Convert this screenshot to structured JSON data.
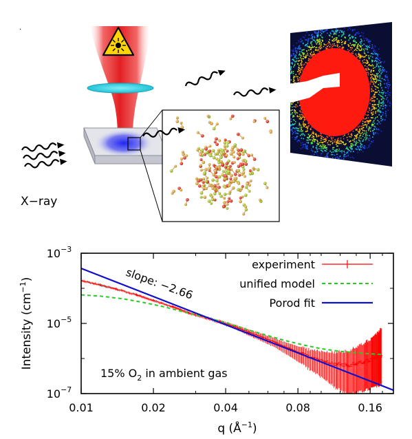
{
  "illustration": {
    "source_label": "X−ray",
    "colors": {
      "laser_beam": "#e8262b",
      "lens": "#35d0e0",
      "substrate": "#d9dce3",
      "xray_spot": "#2a2ff0",
      "warning_sign": "#ffd400",
      "particle_gold": "#d8a23a",
      "particle_red": "#e23a2a",
      "particle_green": "#a8c43a",
      "detector_background": "#0d1030",
      "scatter_core": "#ff1a10"
    },
    "icons": [
      "laser-warning-icon",
      "wavy-arrow-icon"
    ]
  },
  "chart_data": {
    "type": "line",
    "xscale": "log",
    "yscale": "log",
    "xlim": [
      0.01,
      0.2
    ],
    "ylim": [
      1e-07,
      0.001
    ],
    "xticks": [
      0.01,
      0.02,
      0.04,
      0.08,
      0.16
    ],
    "xtick_labels": [
      "0.01",
      "0.02",
      "0.04",
      "0.08",
      "0.16"
    ],
    "yticks": [
      1e-07,
      1e-05,
      0.001
    ],
    "ytick_labels": [
      {
        "base": "10",
        "exp": "−7"
      },
      {
        "base": "10",
        "exp": "−5"
      },
      {
        "base": "10",
        "exp": "−3"
      }
    ],
    "xlabel": {
      "text": "q (Å",
      "sup": "−1",
      "suffix": ")"
    },
    "ylabel": {
      "text": "Intensity (cm",
      "sup": "−1",
      "suffix": ")"
    },
    "grid": false,
    "legend_position": "top-right",
    "series": [
      {
        "name": "experiment",
        "style": "points-with-errorbars",
        "color": "#ff0000",
        "x": [
          0.01,
          0.012,
          0.014,
          0.017,
          0.02,
          0.024,
          0.028,
          0.033,
          0.038,
          0.044,
          0.05,
          0.057,
          0.065,
          0.074,
          0.083,
          0.093,
          0.104,
          0.116,
          0.128,
          0.14,
          0.152,
          0.163,
          0.172,
          0.178
        ],
        "y": [
          0.000165,
          0.000125,
          9.5e-05,
          6.5e-05,
          4.5e-05,
          3e-05,
          2e-05,
          1.45e-05,
          1.1e-05,
          8e-06,
          5.6e-06,
          4e-06,
          2.8e-06,
          1.9e-06,
          1.4e-06,
          1e-06,
          8e-07,
          7e-07,
          6.5e-07,
          7e-07,
          8e-07,
          1e-06,
          1.1e-06,
          1.2e-06
        ],
        "err_low": [
          0.08,
          0.08,
          0.08,
          0.08,
          0.08,
          0.08,
          0.1,
          0.1,
          0.12,
          0.15,
          0.2,
          0.25,
          0.3,
          0.4,
          0.5,
          0.6,
          0.7,
          0.8,
          0.85,
          0.85,
          0.85,
          0.85,
          0.85,
          0.85
        ],
        "err_high": [
          0.08,
          0.08,
          0.08,
          0.08,
          0.08,
          0.08,
          0.1,
          0.1,
          0.12,
          0.15,
          0.2,
          0.25,
          0.3,
          0.4,
          0.5,
          0.7,
          0.9,
          1.2,
          1.5,
          2.0,
          2.5,
          3.0,
          4.0,
          5.0
        ]
      },
      {
        "name": "unified model",
        "style": "dashed",
        "color": "#22cc22",
        "x": [
          0.01,
          0.012,
          0.015,
          0.018,
          0.022,
          0.027,
          0.033,
          0.04,
          0.048,
          0.058,
          0.07,
          0.085,
          0.1,
          0.12,
          0.15,
          0.18
        ],
        "y": [
          6.5e-05,
          6e-05,
          5e-05,
          4e-05,
          3e-05,
          2.1e-05,
          1.5e-05,
          1.05e-05,
          7e-06,
          4.8e-06,
          3.3e-06,
          2.4e-06,
          1.9e-06,
          1.6e-06,
          1.4e-06,
          1.3e-06
        ]
      },
      {
        "name": "Porod fit",
        "style": "solid",
        "color": "#1010cc",
        "x": [
          0.01,
          0.2
        ],
        "y": [
          0.00037,
          1.25e-07
        ]
      }
    ],
    "annotations": [
      {
        "name": "slope-annotation",
        "text": "slope: −2.66"
      },
      {
        "name": "condition-annotation",
        "text_main": "15% O",
        "text_sub": "2",
        "text_tail": " in ambient gas"
      }
    ]
  }
}
